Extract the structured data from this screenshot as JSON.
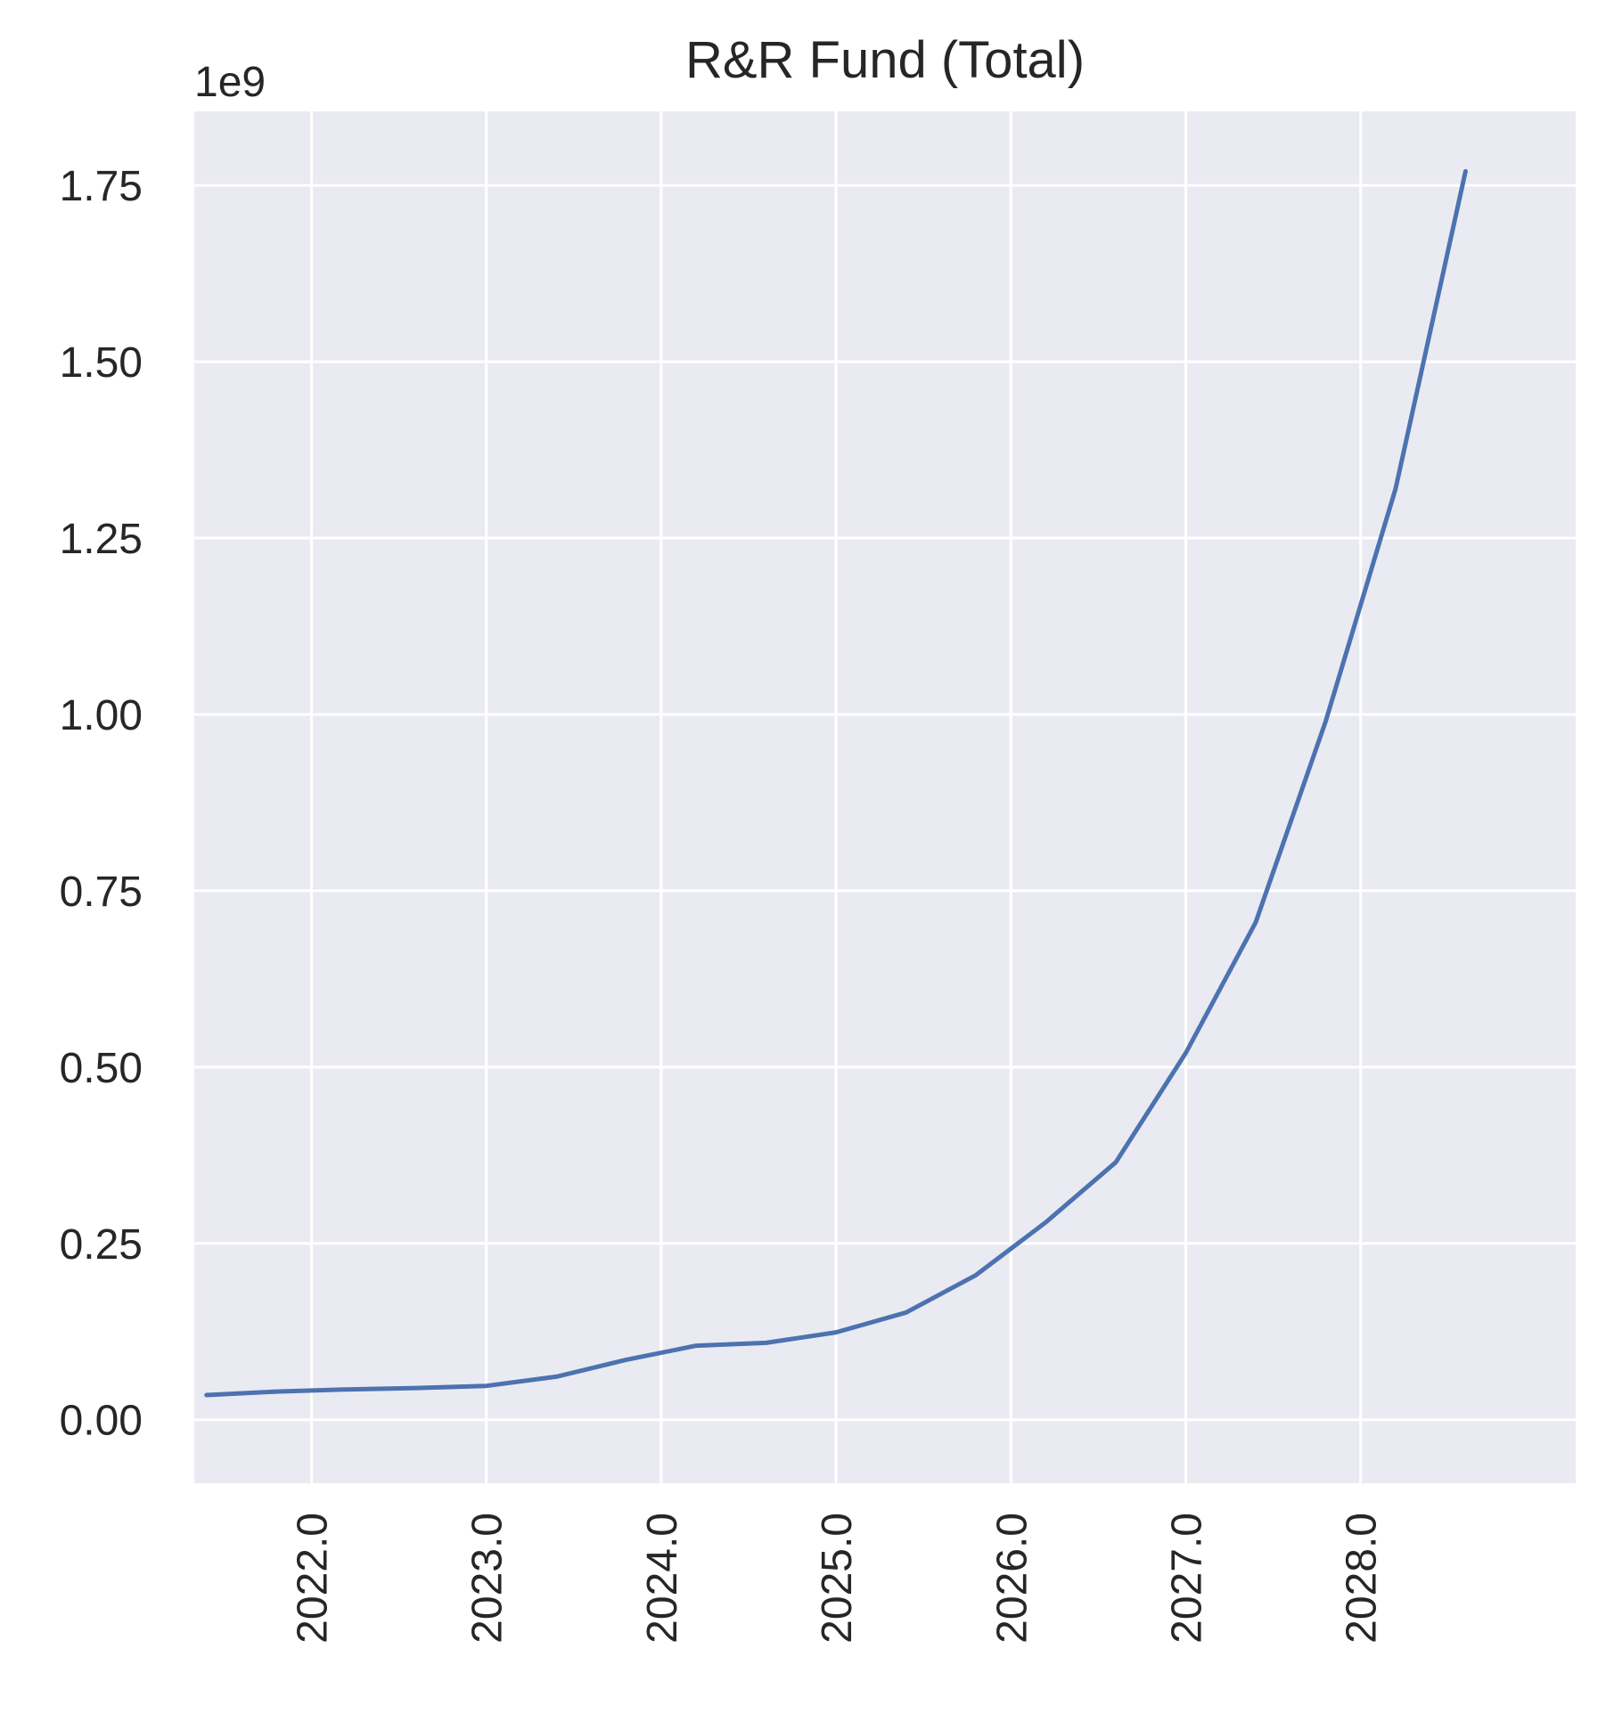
{
  "chart_data": {
    "type": "line",
    "title": "R&R Fund (Total)",
    "xlabel": "",
    "ylabel": "",
    "y_offset_label": "1e9",
    "xlim": [
      2021.33,
      2029.23
    ],
    "ylim": [
      -0.09,
      1.855
    ],
    "x_ticks": [
      2022.0,
      2023.0,
      2024.0,
      2025.0,
      2026.0,
      2027.0,
      2028.0
    ],
    "x_tick_labels": [
      "2022.0",
      "2023.0",
      "2024.0",
      "2025.0",
      "2026.0",
      "2027.0",
      "2028.0"
    ],
    "y_ticks": [
      0.0,
      0.25,
      0.5,
      0.75,
      1.0,
      1.25,
      1.5,
      1.75
    ],
    "y_tick_labels": [
      "0.00",
      "0.25",
      "0.50",
      "0.75",
      "1.00",
      "1.25",
      "1.50",
      "1.75"
    ],
    "grid": true,
    "colors": {
      "line": "#4c72b0",
      "plot_bg": "#eaeaf2",
      "grid": "#ffffff",
      "text": "#262626"
    },
    "series": [
      {
        "x": [
          2021.4,
          2021.8,
          2022.2,
          2022.6,
          2023.0,
          2023.4,
          2023.8,
          2024.2,
          2024.6,
          2025.0,
          2025.4,
          2025.8,
          2026.2,
          2026.6,
          2027.0,
          2027.4,
          2027.8,
          2028.2,
          2028.6
        ],
        "y": [
          0.035,
          0.04,
          0.043,
          0.045,
          0.048,
          0.061,
          0.085,
          0.105,
          0.109,
          0.124,
          0.152,
          0.205,
          0.28,
          0.365,
          0.52,
          0.705,
          0.99,
          1.32,
          1.77
        ]
      }
    ]
  }
}
